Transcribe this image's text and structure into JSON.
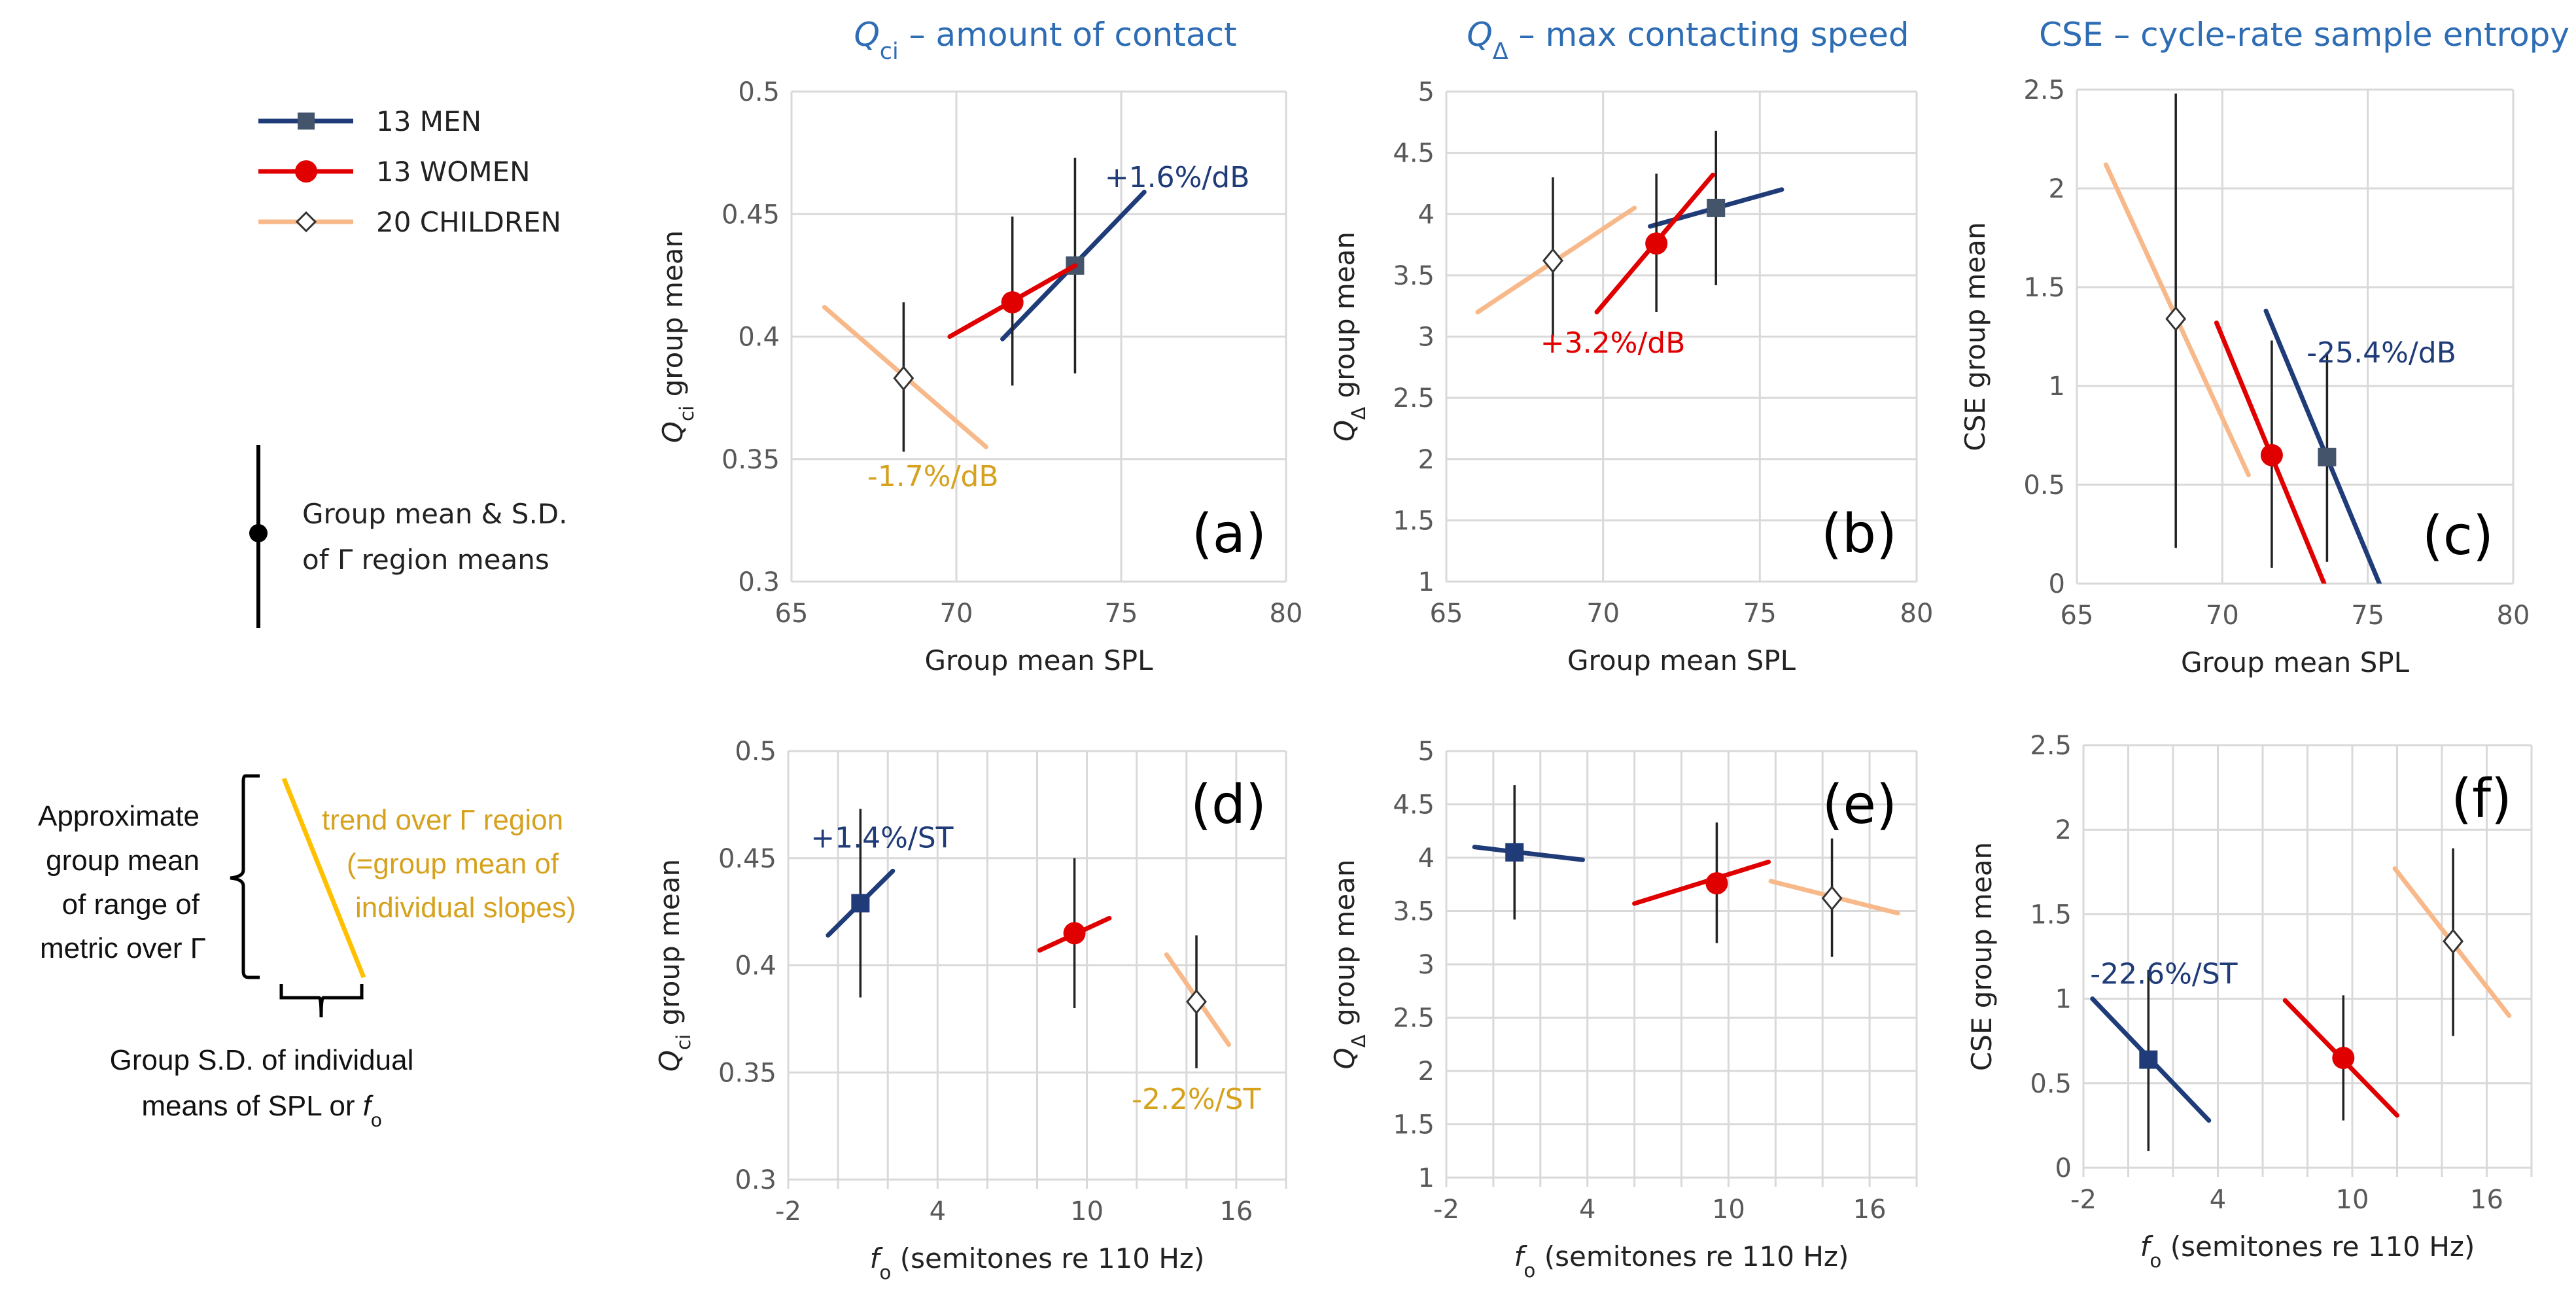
{
  "colors": {
    "men": "#1F3B78",
    "men_marker": "#44546A",
    "women": "#E00000",
    "children": "#F8B98A",
    "children_label": "#D6A21E",
    "title": "#2E6DB4",
    "errorbar": "#222222",
    "grid": "#D9D9D9"
  },
  "legend": {
    "series": [
      {
        "key": "men",
        "label": "13 MEN",
        "marker": "square"
      },
      {
        "key": "women",
        "label": "13 WOMEN",
        "marker": "circle"
      },
      {
        "key": "children",
        "label": "20 CHILDREN",
        "marker": "diamond"
      }
    ],
    "errorbar_line1": "Group mean & S.D.",
    "errorbar_line2": "of Γ region means",
    "trend_left": [
      "Approximate",
      "group mean",
      "of range of",
      "metric over Γ"
    ],
    "trend_right": [
      "trend over Γ region",
      "(=group mean of",
      "individual slopes)"
    ],
    "sd_caption_line1": "Group S.D. of individual",
    "sd_caption_line2_prefix": "means of SPL or ",
    "sd_caption_sym": "f",
    "sd_caption_sub": "o"
  },
  "chart_data": [
    {
      "panel": "(a)",
      "type": "scatter",
      "title": {
        "sym": "Q",
        "sub": "ci",
        "rest": " – amount of contact"
      },
      "ylabel": {
        "sym": "Q",
        "sub": "ci",
        "rest": " group mean"
      },
      "xlabel": {
        "sym": "",
        "sub": "",
        "rest": "Group mean SPL"
      },
      "xlim": [
        65,
        80
      ],
      "xticks": [
        65,
        70,
        75,
        80
      ],
      "xgrid": [
        65,
        70,
        75,
        80
      ],
      "ylim": [
        0.3,
        0.5
      ],
      "yticks": [
        0.3,
        0.35,
        0.4,
        0.45,
        0.5
      ],
      "series": [
        {
          "key": "men",
          "mean": [
            73.6,
            0.429
          ],
          "sd": [
            0.385,
            0.473
          ],
          "trend": [
            [
              71.4,
              0.399
            ],
            [
              75.7,
              0.459
            ]
          ]
        },
        {
          "key": "women",
          "mean": [
            71.7,
            0.414
          ],
          "sd": [
            0.38,
            0.449
          ],
          "trend": [
            [
              69.8,
              0.4
            ],
            [
              73.6,
              0.429
            ]
          ]
        },
        {
          "key": "children",
          "mean": [
            68.4,
            0.383
          ],
          "sd": [
            0.353,
            0.414
          ],
          "trend": [
            [
              66.0,
              0.412
            ],
            [
              70.9,
              0.355
            ]
          ]
        }
      ],
      "annotations": [
        {
          "text": "+1.6%/dB",
          "key": "men",
          "x": 74.5,
          "y": 0.461
        },
        {
          "text": "-1.7%/dB",
          "key": "children_label",
          "x": 67.3,
          "y": 0.339
        }
      ]
    },
    {
      "panel": "(b)",
      "type": "scatter",
      "title": {
        "sym": "Q",
        "sub": "Δ",
        "rest": " – max contacting speed"
      },
      "ylabel": {
        "sym": "Q",
        "sub": "Δ",
        "rest": " group mean"
      },
      "xlabel": {
        "sym": "",
        "sub": "",
        "rest": "Group mean SPL"
      },
      "xlim": [
        65,
        80
      ],
      "xticks": [
        65,
        70,
        75,
        80
      ],
      "xgrid": [
        65,
        70,
        75,
        80
      ],
      "ylim": [
        1,
        5
      ],
      "yticks": [
        1,
        1.5,
        2,
        2.5,
        3,
        3.5,
        4,
        4.5,
        5
      ],
      "series": [
        {
          "key": "men",
          "mean": [
            73.6,
            4.05
          ],
          "sd": [
            3.42,
            4.68
          ],
          "trend": [
            [
              71.5,
              3.9
            ],
            [
              75.7,
              4.2
            ]
          ]
        },
        {
          "key": "women",
          "mean": [
            71.7,
            3.76
          ],
          "sd": [
            3.2,
            4.33
          ],
          "trend": [
            [
              69.8,
              3.2
            ],
            [
              73.5,
              4.32
            ]
          ]
        },
        {
          "key": "children",
          "mean": [
            68.4,
            3.62
          ],
          "sd": [
            3.0,
            4.3
          ],
          "trend": [
            [
              66.0,
              3.2
            ],
            [
              71.0,
              4.05
            ]
          ]
        }
      ],
      "annotations": [
        {
          "text": "+3.2%/dB",
          "key": "women",
          "x": 68.0,
          "y": 2.87
        }
      ]
    },
    {
      "panel": "(c)",
      "type": "scatter",
      "title": {
        "sym": "CSE",
        "sub": "",
        "rest": " – cycle-rate sample entropy"
      },
      "ylabel": {
        "sym": "CSE",
        "sub": "",
        "rest": " group mean"
      },
      "xlabel": {
        "sym": "",
        "sub": "",
        "rest": "Group mean SPL"
      },
      "xlim": [
        65,
        80
      ],
      "xticks": [
        65,
        70,
        75,
        80
      ],
      "xgrid": [
        65,
        70,
        75,
        80
      ],
      "ylim": [
        0,
        2.5
      ],
      "yticks": [
        0,
        0.5,
        1,
        1.5,
        2,
        2.5
      ],
      "series": [
        {
          "key": "men",
          "mean": [
            73.6,
            0.64
          ],
          "sd": [
            0.11,
            1.17
          ],
          "trend": [
            [
              71.5,
              1.38
            ],
            [
              75.4,
              0.0
            ]
          ]
        },
        {
          "key": "women",
          "mean": [
            71.7,
            0.65
          ],
          "sd": [
            0.08,
            1.23
          ],
          "trend": [
            [
              69.8,
              1.32
            ],
            [
              73.5,
              0.0
            ]
          ]
        },
        {
          "key": "children",
          "mean": [
            68.4,
            1.34
          ],
          "sd": [
            0.18,
            2.48
          ],
          "trend": [
            [
              66.0,
              2.12
            ],
            [
              70.9,
              0.55
            ]
          ]
        }
      ],
      "annotations": [
        {
          "text": "-25.4%/dB",
          "key": "men",
          "x": 72.9,
          "y": 1.12
        }
      ]
    },
    {
      "panel": "(d)",
      "type": "scatter",
      "title": null,
      "ylabel": {
        "sym": "Q",
        "sub": "ci",
        "rest": " group mean"
      },
      "xlabel": {
        "sym": "f",
        "sub": "o",
        "rest": " (semitones re 110 Hz)"
      },
      "xlim": [
        -2,
        18
      ],
      "xticks": [
        -2,
        4,
        10,
        16
      ],
      "xgrid": [
        -2,
        0,
        2,
        4,
        6,
        8,
        10,
        12,
        14,
        16,
        18
      ],
      "ylim": [
        0.3,
        0.5
      ],
      "yticks": [
        0.3,
        0.35,
        0.4,
        0.45,
        0.5
      ],
      "series": [
        {
          "key": "men",
          "mean": [
            0.9,
            0.429
          ],
          "sd": [
            0.385,
            0.473
          ],
          "trend": [
            [
              -0.4,
              0.414
            ],
            [
              2.2,
              0.444
            ]
          ]
        },
        {
          "key": "women",
          "mean": [
            9.5,
            0.415
          ],
          "sd": [
            0.38,
            0.45
          ],
          "trend": [
            [
              8.1,
              0.407
            ],
            [
              10.9,
              0.422
            ]
          ]
        },
        {
          "key": "children",
          "mean": [
            14.4,
            0.383
          ],
          "sd": [
            0.352,
            0.414
          ],
          "trend": [
            [
              13.2,
              0.405
            ],
            [
              15.7,
              0.363
            ]
          ]
        }
      ],
      "annotations": [
        {
          "text": "+1.4%/ST",
          "key": "men",
          "x": -1.1,
          "y": 0.455
        },
        {
          "text": "-2.2%/ST",
          "key": "children_label",
          "x": 11.8,
          "y": 0.333
        }
      ]
    },
    {
      "panel": "(e)",
      "type": "scatter",
      "title": null,
      "ylabel": {
        "sym": "Q",
        "sub": "Δ",
        "rest": " group mean"
      },
      "xlabel": {
        "sym": "f",
        "sub": "o",
        "rest": " (semitones re 110 Hz)"
      },
      "xlim": [
        -2,
        18
      ],
      "xticks": [
        -2,
        4,
        10,
        16
      ],
      "xgrid": [
        -2,
        0,
        2,
        4,
        6,
        8,
        10,
        12,
        14,
        16,
        18
      ],
      "ylim": [
        1,
        5
      ],
      "yticks": [
        1,
        1.5,
        2,
        2.5,
        3,
        3.5,
        4,
        4.5,
        5
      ],
      "series": [
        {
          "key": "men",
          "mean": [
            0.9,
            4.05
          ],
          "sd": [
            3.42,
            4.68
          ],
          "trend": [
            [
              -0.8,
              4.1
            ],
            [
              3.8,
              3.98
            ]
          ]
        },
        {
          "key": "women",
          "mean": [
            9.5,
            3.76
          ],
          "sd": [
            3.2,
            4.33
          ],
          "trend": [
            [
              6.0,
              3.57
            ],
            [
              11.7,
              3.96
            ]
          ]
        },
        {
          "key": "children",
          "mean": [
            14.4,
            3.62
          ],
          "sd": [
            3.07,
            4.18
          ],
          "trend": [
            [
              11.8,
              3.78
            ],
            [
              17.2,
              3.48
            ]
          ]
        }
      ],
      "annotations": []
    },
    {
      "panel": "(f)",
      "type": "scatter",
      "title": null,
      "ylabel": {
        "sym": "CSE",
        "sub": "",
        "rest": " group mean"
      },
      "xlabel": {
        "sym": "f",
        "sub": "o",
        "rest": " (semitones re 110 Hz)"
      },
      "xlim": [
        -2,
        18
      ],
      "xticks": [
        -2,
        4,
        10,
        16
      ],
      "xgrid": [
        -2,
        0,
        2,
        4,
        6,
        8,
        10,
        12,
        14,
        16,
        18
      ],
      "ylim": [
        0,
        2.5
      ],
      "yticks": [
        0,
        0.5,
        1,
        1.5,
        2,
        2.5
      ],
      "series": [
        {
          "key": "men",
          "mean": [
            0.9,
            0.64
          ],
          "sd": [
            0.1,
            1.17
          ],
          "trend": [
            [
              -1.6,
              1.0
            ],
            [
              3.6,
              0.28
            ]
          ]
        },
        {
          "key": "women",
          "mean": [
            9.6,
            0.65
          ],
          "sd": [
            0.28,
            1.02
          ],
          "trend": [
            [
              7.0,
              0.99
            ],
            [
              12.0,
              0.31
            ]
          ]
        },
        {
          "key": "children",
          "mean": [
            14.5,
            1.34
          ],
          "sd": [
            0.78,
            1.89
          ],
          "trend": [
            [
              11.9,
              1.77
            ],
            [
              17.0,
              0.9
            ]
          ]
        }
      ],
      "annotations": [
        {
          "text": "-22.6%/ST",
          "key": "men",
          "x": -1.7,
          "y": 1.09
        }
      ]
    }
  ]
}
